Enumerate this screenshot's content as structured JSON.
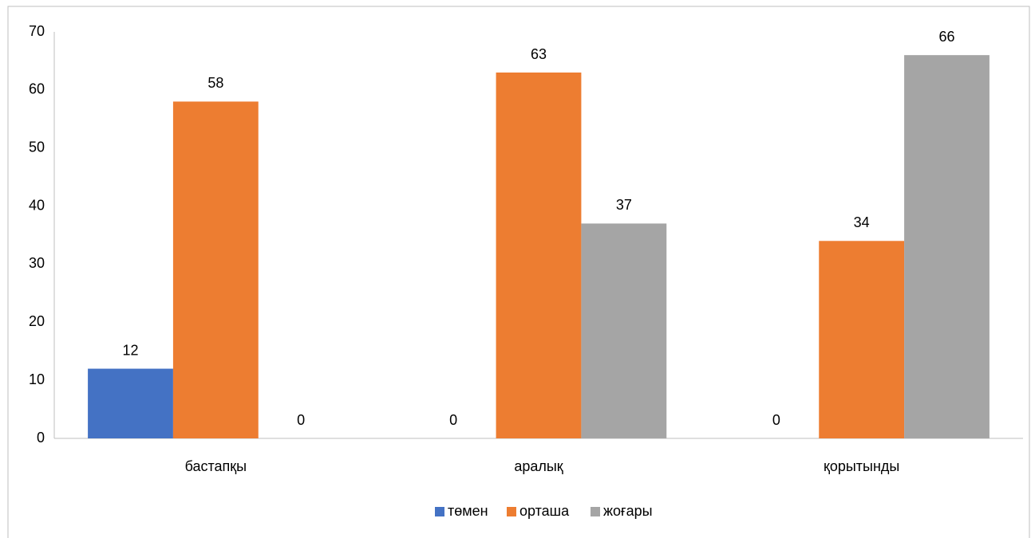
{
  "chart_data": {
    "type": "bar",
    "categories": [
      "бастапқы",
      "аралық",
      "қорытынды"
    ],
    "series": [
      {
        "name": "төмен",
        "color": "#4472c4",
        "values": [
          12,
          0,
          0
        ]
      },
      {
        "name": "орташа",
        "color": "#ed7d31",
        "values": [
          58,
          63,
          34
        ]
      },
      {
        "name": "жоғары",
        "color": "#a5a5a5",
        "values": [
          0,
          37,
          66
        ]
      }
    ],
    "ylim": [
      0,
      70
    ],
    "yticks": [
      0,
      10,
      20,
      30,
      40,
      50,
      60,
      70
    ],
    "grid": false,
    "legend": "bottom"
  }
}
